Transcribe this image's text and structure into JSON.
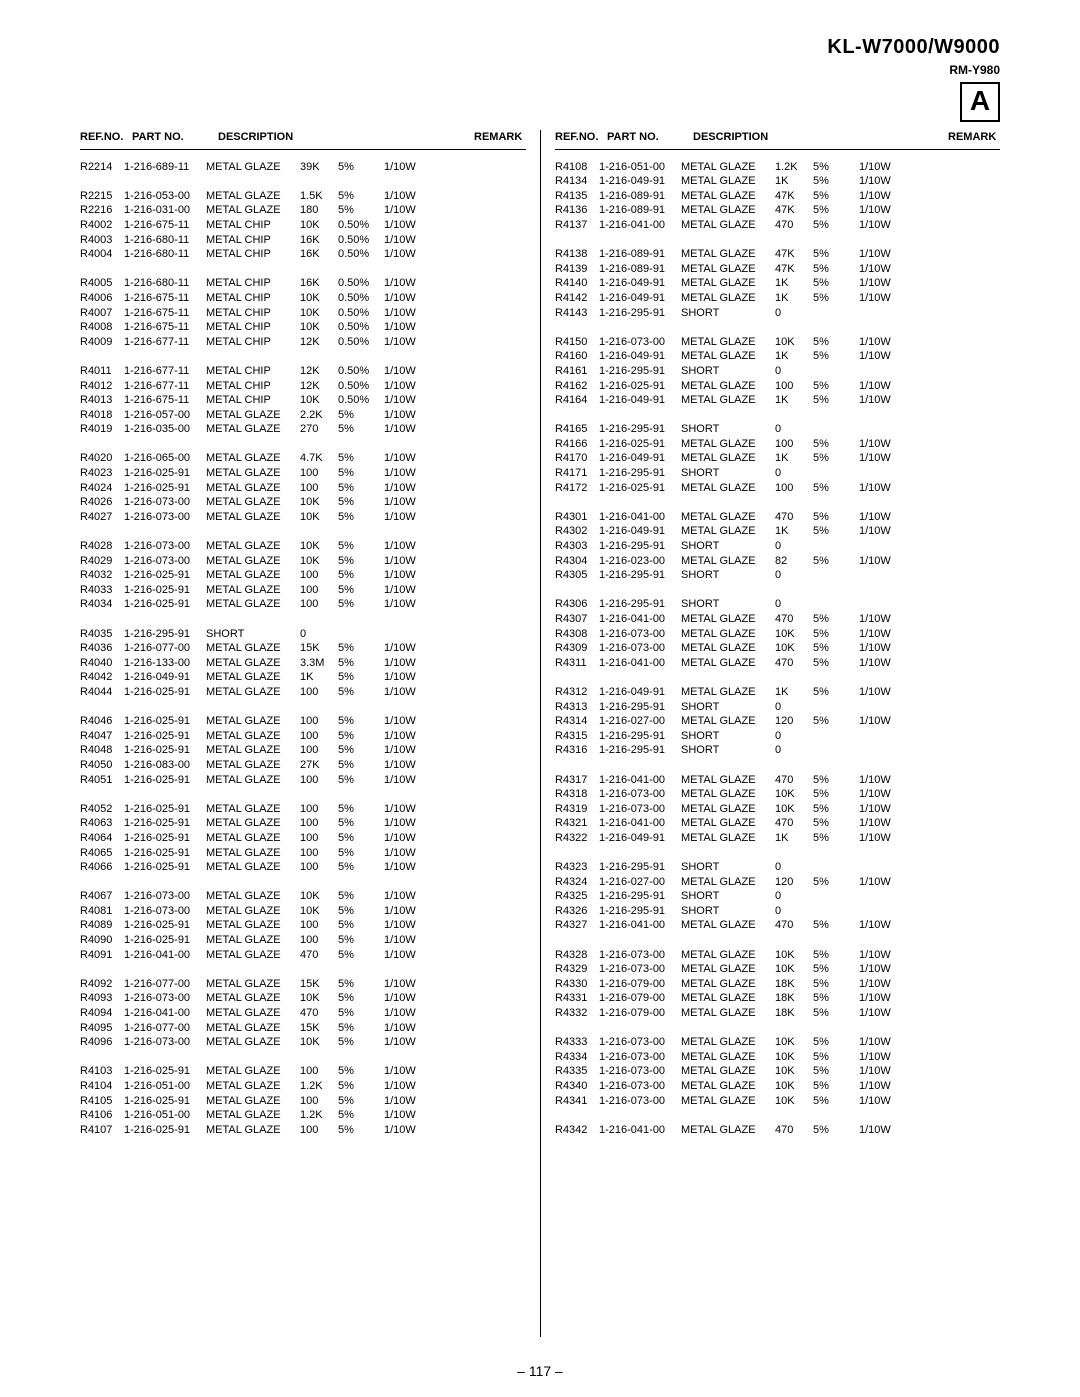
{
  "header": {
    "model": "KL-W7000/W9000",
    "submodel": "RM-Y980",
    "section_letter": "A",
    "page_number": "– 117 –"
  },
  "column_header": {
    "ref": "REF.NO.",
    "part": "PART NO.",
    "desc": "DESCRIPTION",
    "remark": "REMARK"
  },
  "left": [
    {
      "ref": "R2214",
      "part": "1-216-689-11",
      "desc": "METAL GLAZE",
      "val": "39K",
      "tol": "5%",
      "watt": "1/10W"
    },
    null,
    {
      "ref": "R2215",
      "part": "1-216-053-00",
      "desc": "METAL GLAZE",
      "val": "1.5K",
      "tol": "5%",
      "watt": "1/10W"
    },
    {
      "ref": "R2216",
      "part": "1-216-031-00",
      "desc": "METAL GLAZE",
      "val": "180",
      "tol": "5%",
      "watt": "1/10W"
    },
    {
      "ref": "R4002",
      "part": "1-216-675-11",
      "desc": "METAL CHIP",
      "val": "10K",
      "tol": "0.50%",
      "watt": "1/10W"
    },
    {
      "ref": "R4003",
      "part": "1-216-680-11",
      "desc": "METAL CHIP",
      "val": "16K",
      "tol": "0.50%",
      "watt": "1/10W"
    },
    {
      "ref": "R4004",
      "part": "1-216-680-11",
      "desc": "METAL CHIP",
      "val": "16K",
      "tol": "0.50%",
      "watt": "1/10W"
    },
    null,
    {
      "ref": "R4005",
      "part": "1-216-680-11",
      "desc": "METAL CHIP",
      "val": "16K",
      "tol": "0.50%",
      "watt": "1/10W"
    },
    {
      "ref": "R4006",
      "part": "1-216-675-11",
      "desc": "METAL CHIP",
      "val": "10K",
      "tol": "0.50%",
      "watt": "1/10W"
    },
    {
      "ref": "R4007",
      "part": "1-216-675-11",
      "desc": "METAL CHIP",
      "val": "10K",
      "tol": "0.50%",
      "watt": "1/10W"
    },
    {
      "ref": "R4008",
      "part": "1-216-675-11",
      "desc": "METAL CHIP",
      "val": "10K",
      "tol": "0.50%",
      "watt": "1/10W"
    },
    {
      "ref": "R4009",
      "part": "1-216-677-11",
      "desc": "METAL CHIP",
      "val": "12K",
      "tol": "0.50%",
      "watt": "1/10W"
    },
    null,
    {
      "ref": "R4011",
      "part": "1-216-677-11",
      "desc": "METAL CHIP",
      "val": "12K",
      "tol": "0.50%",
      "watt": "1/10W"
    },
    {
      "ref": "R4012",
      "part": "1-216-677-11",
      "desc": "METAL CHIP",
      "val": "12K",
      "tol": "0.50%",
      "watt": "1/10W"
    },
    {
      "ref": "R4013",
      "part": "1-216-675-11",
      "desc": "METAL CHIP",
      "val": "10K",
      "tol": "0.50%",
      "watt": "1/10W"
    },
    {
      "ref": "R4018",
      "part": "1-216-057-00",
      "desc": "METAL GLAZE",
      "val": "2.2K",
      "tol": "5%",
      "watt": "1/10W"
    },
    {
      "ref": "R4019",
      "part": "1-216-035-00",
      "desc": "METAL GLAZE",
      "val": "270",
      "tol": "5%",
      "watt": "1/10W"
    },
    null,
    {
      "ref": "R4020",
      "part": "1-216-065-00",
      "desc": "METAL GLAZE",
      "val": "4.7K",
      "tol": "5%",
      "watt": "1/10W"
    },
    {
      "ref": "R4023",
      "part": "1-216-025-91",
      "desc": "METAL GLAZE",
      "val": "100",
      "tol": "5%",
      "watt": "1/10W"
    },
    {
      "ref": "R4024",
      "part": "1-216-025-91",
      "desc": "METAL GLAZE",
      "val": "100",
      "tol": "5%",
      "watt": "1/10W"
    },
    {
      "ref": "R4026",
      "part": "1-216-073-00",
      "desc": "METAL GLAZE",
      "val": "10K",
      "tol": "5%",
      "watt": "1/10W"
    },
    {
      "ref": "R4027",
      "part": "1-216-073-00",
      "desc": "METAL GLAZE",
      "val": "10K",
      "tol": "5%",
      "watt": "1/10W"
    },
    null,
    {
      "ref": "R4028",
      "part": "1-216-073-00",
      "desc": "METAL GLAZE",
      "val": "10K",
      "tol": "5%",
      "watt": "1/10W"
    },
    {
      "ref": "R4029",
      "part": "1-216-073-00",
      "desc": "METAL GLAZE",
      "val": "10K",
      "tol": "5%",
      "watt": "1/10W"
    },
    {
      "ref": "R4032",
      "part": "1-216-025-91",
      "desc": "METAL GLAZE",
      "val": "100",
      "tol": "5%",
      "watt": "1/10W"
    },
    {
      "ref": "R4033",
      "part": "1-216-025-91",
      "desc": "METAL GLAZE",
      "val": "100",
      "tol": "5%",
      "watt": "1/10W"
    },
    {
      "ref": "R4034",
      "part": "1-216-025-91",
      "desc": "METAL GLAZE",
      "val": "100",
      "tol": "5%",
      "watt": "1/10W"
    },
    null,
    {
      "ref": "R4035",
      "part": "1-216-295-91",
      "desc": "SHORT",
      "val": "0",
      "tol": "",
      "watt": ""
    },
    {
      "ref": "R4036",
      "part": "1-216-077-00",
      "desc": "METAL GLAZE",
      "val": "15K",
      "tol": "5%",
      "watt": "1/10W"
    },
    {
      "ref": "R4040",
      "part": "1-216-133-00",
      "desc": "METAL GLAZE",
      "val": "3.3M",
      "tol": "5%",
      "watt": "1/10W"
    },
    {
      "ref": "R4042",
      "part": "1-216-049-91",
      "desc": "METAL GLAZE",
      "val": "1K",
      "tol": "5%",
      "watt": "1/10W"
    },
    {
      "ref": "R4044",
      "part": "1-216-025-91",
      "desc": "METAL GLAZE",
      "val": "100",
      "tol": "5%",
      "watt": "1/10W"
    },
    null,
    {
      "ref": "R4046",
      "part": "1-216-025-91",
      "desc": "METAL GLAZE",
      "val": "100",
      "tol": "5%",
      "watt": "1/10W"
    },
    {
      "ref": "R4047",
      "part": "1-216-025-91",
      "desc": "METAL GLAZE",
      "val": "100",
      "tol": "5%",
      "watt": "1/10W"
    },
    {
      "ref": "R4048",
      "part": "1-216-025-91",
      "desc": "METAL GLAZE",
      "val": "100",
      "tol": "5%",
      "watt": "1/10W"
    },
    {
      "ref": "R4050",
      "part": "1-216-083-00",
      "desc": "METAL GLAZE",
      "val": "27K",
      "tol": "5%",
      "watt": "1/10W"
    },
    {
      "ref": "R4051",
      "part": "1-216-025-91",
      "desc": "METAL GLAZE",
      "val": "100",
      "tol": "5%",
      "watt": "1/10W"
    },
    null,
    {
      "ref": "R4052",
      "part": "1-216-025-91",
      "desc": "METAL GLAZE",
      "val": "100",
      "tol": "5%",
      "watt": "1/10W"
    },
    {
      "ref": "R4063",
      "part": "1-216-025-91",
      "desc": "METAL GLAZE",
      "val": "100",
      "tol": "5%",
      "watt": "1/10W"
    },
    {
      "ref": "R4064",
      "part": "1-216-025-91",
      "desc": "METAL GLAZE",
      "val": "100",
      "tol": "5%",
      "watt": "1/10W"
    },
    {
      "ref": "R4065",
      "part": "1-216-025-91",
      "desc": "METAL GLAZE",
      "val": "100",
      "tol": "5%",
      "watt": "1/10W"
    },
    {
      "ref": "R4066",
      "part": "1-216-025-91",
      "desc": "METAL GLAZE",
      "val": "100",
      "tol": "5%",
      "watt": "1/10W"
    },
    null,
    {
      "ref": "R4067",
      "part": "1-216-073-00",
      "desc": "METAL GLAZE",
      "val": "10K",
      "tol": "5%",
      "watt": "1/10W"
    },
    {
      "ref": "R4081",
      "part": "1-216-073-00",
      "desc": "METAL GLAZE",
      "val": "10K",
      "tol": "5%",
      "watt": "1/10W"
    },
    {
      "ref": "R4089",
      "part": "1-216-025-91",
      "desc": "METAL GLAZE",
      "val": "100",
      "tol": "5%",
      "watt": "1/10W"
    },
    {
      "ref": "R4090",
      "part": "1-216-025-91",
      "desc": "METAL GLAZE",
      "val": "100",
      "tol": "5%",
      "watt": "1/10W"
    },
    {
      "ref": "R4091",
      "part": "1-216-041-00",
      "desc": "METAL GLAZE",
      "val": "470",
      "tol": "5%",
      "watt": "1/10W"
    },
    null,
    {
      "ref": "R4092",
      "part": "1-216-077-00",
      "desc": "METAL GLAZE",
      "val": "15K",
      "tol": "5%",
      "watt": "1/10W"
    },
    {
      "ref": "R4093",
      "part": "1-216-073-00",
      "desc": "METAL GLAZE",
      "val": "10K",
      "tol": "5%",
      "watt": "1/10W"
    },
    {
      "ref": "R4094",
      "part": "1-216-041-00",
      "desc": "METAL GLAZE",
      "val": "470",
      "tol": "5%",
      "watt": "1/10W"
    },
    {
      "ref": "R4095",
      "part": "1-216-077-00",
      "desc": "METAL GLAZE",
      "val": "15K",
      "tol": "5%",
      "watt": "1/10W"
    },
    {
      "ref": "R4096",
      "part": "1-216-073-00",
      "desc": "METAL GLAZE",
      "val": "10K",
      "tol": "5%",
      "watt": "1/10W"
    },
    null,
    {
      "ref": "R4103",
      "part": "1-216-025-91",
      "desc": "METAL GLAZE",
      "val": "100",
      "tol": "5%",
      "watt": "1/10W"
    },
    {
      "ref": "R4104",
      "part": "1-216-051-00",
      "desc": "METAL GLAZE",
      "val": "1.2K",
      "tol": "5%",
      "watt": "1/10W"
    },
    {
      "ref": "R4105",
      "part": "1-216-025-91",
      "desc": "METAL GLAZE",
      "val": "100",
      "tol": "5%",
      "watt": "1/10W"
    },
    {
      "ref": "R4106",
      "part": "1-216-051-00",
      "desc": "METAL GLAZE",
      "val": "1.2K",
      "tol": "5%",
      "watt": "1/10W"
    },
    {
      "ref": "R4107",
      "part": "1-216-025-91",
      "desc": "METAL GLAZE",
      "val": "100",
      "tol": "5%",
      "watt": "1/10W"
    }
  ],
  "right": [
    {
      "ref": "R4108",
      "part": "1-216-051-00",
      "desc": "METAL GLAZE",
      "val": "1.2K",
      "tol": "5%",
      "watt": "1/10W"
    },
    {
      "ref": "R4134",
      "part": "1-216-049-91",
      "desc": "METAL GLAZE",
      "val": "1K",
      "tol": "5%",
      "watt": "1/10W"
    },
    {
      "ref": "R4135",
      "part": "1-216-089-91",
      "desc": "METAL GLAZE",
      "val": "47K",
      "tol": "5%",
      "watt": "1/10W"
    },
    {
      "ref": "R4136",
      "part": "1-216-089-91",
      "desc": "METAL GLAZE",
      "val": "47K",
      "tol": "5%",
      "watt": "1/10W"
    },
    {
      "ref": "R4137",
      "part": "1-216-041-00",
      "desc": "METAL GLAZE",
      "val": "470",
      "tol": "5%",
      "watt": "1/10W"
    },
    null,
    {
      "ref": "R4138",
      "part": "1-216-089-91",
      "desc": "METAL GLAZE",
      "val": "47K",
      "tol": "5%",
      "watt": "1/10W"
    },
    {
      "ref": "R4139",
      "part": "1-216-089-91",
      "desc": "METAL GLAZE",
      "val": "47K",
      "tol": "5%",
      "watt": "1/10W"
    },
    {
      "ref": "R4140",
      "part": "1-216-049-91",
      "desc": "METAL GLAZE",
      "val": "1K",
      "tol": "5%",
      "watt": "1/10W"
    },
    {
      "ref": "R4142",
      "part": "1-216-049-91",
      "desc": "METAL GLAZE",
      "val": "1K",
      "tol": "5%",
      "watt": "1/10W"
    },
    {
      "ref": "R4143",
      "part": "1-216-295-91",
      "desc": "SHORT",
      "val": "0",
      "tol": "",
      "watt": ""
    },
    null,
    {
      "ref": "R4150",
      "part": "1-216-073-00",
      "desc": "METAL GLAZE",
      "val": "10K",
      "tol": "5%",
      "watt": "1/10W"
    },
    {
      "ref": "R4160",
      "part": "1-216-049-91",
      "desc": "METAL GLAZE",
      "val": "1K",
      "tol": "5%",
      "watt": "1/10W"
    },
    {
      "ref": "R4161",
      "part": "1-216-295-91",
      "desc": "SHORT",
      "val": "0",
      "tol": "",
      "watt": ""
    },
    {
      "ref": "R4162",
      "part": "1-216-025-91",
      "desc": "METAL GLAZE",
      "val": "100",
      "tol": "5%",
      "watt": "1/10W"
    },
    {
      "ref": "R4164",
      "part": "1-216-049-91",
      "desc": "METAL GLAZE",
      "val": "1K",
      "tol": "5%",
      "watt": "1/10W"
    },
    null,
    {
      "ref": "R4165",
      "part": "1-216-295-91",
      "desc": "SHORT",
      "val": "0",
      "tol": "",
      "watt": ""
    },
    {
      "ref": "R4166",
      "part": "1-216-025-91",
      "desc": "METAL GLAZE",
      "val": "100",
      "tol": "5%",
      "watt": "1/10W"
    },
    {
      "ref": "R4170",
      "part": "1-216-049-91",
      "desc": "METAL GLAZE",
      "val": "1K",
      "tol": "5%",
      "watt": "1/10W"
    },
    {
      "ref": "R4171",
      "part": "1-216-295-91",
      "desc": "SHORT",
      "val": "0",
      "tol": "",
      "watt": ""
    },
    {
      "ref": "R4172",
      "part": "1-216-025-91",
      "desc": "METAL GLAZE",
      "val": "100",
      "tol": "5%",
      "watt": "1/10W"
    },
    null,
    {
      "ref": "R4301",
      "part": "1-216-041-00",
      "desc": "METAL GLAZE",
      "val": "470",
      "tol": "5%",
      "watt": "1/10W"
    },
    {
      "ref": "R4302",
      "part": "1-216-049-91",
      "desc": "METAL GLAZE",
      "val": "1K",
      "tol": "5%",
      "watt": "1/10W"
    },
    {
      "ref": "R4303",
      "part": "1-216-295-91",
      "desc": "SHORT",
      "val": "0",
      "tol": "",
      "watt": ""
    },
    {
      "ref": "R4304",
      "part": "1-216-023-00",
      "desc": "METAL GLAZE",
      "val": "82",
      "tol": "5%",
      "watt": "1/10W"
    },
    {
      "ref": "R4305",
      "part": "1-216-295-91",
      "desc": "SHORT",
      "val": "0",
      "tol": "",
      "watt": ""
    },
    null,
    {
      "ref": "R4306",
      "part": "1-216-295-91",
      "desc": "SHORT",
      "val": "0",
      "tol": "",
      "watt": ""
    },
    {
      "ref": "R4307",
      "part": "1-216-041-00",
      "desc": "METAL GLAZE",
      "val": "470",
      "tol": "5%",
      "watt": "1/10W"
    },
    {
      "ref": "R4308",
      "part": "1-216-073-00",
      "desc": "METAL GLAZE",
      "val": "10K",
      "tol": "5%",
      "watt": "1/10W"
    },
    {
      "ref": "R4309",
      "part": "1-216-073-00",
      "desc": "METAL GLAZE",
      "val": "10K",
      "tol": "5%",
      "watt": "1/10W"
    },
    {
      "ref": "R4311",
      "part": "1-216-041-00",
      "desc": "METAL GLAZE",
      "val": "470",
      "tol": "5%",
      "watt": "1/10W"
    },
    null,
    {
      "ref": "R4312",
      "part": "1-216-049-91",
      "desc": "METAL GLAZE",
      "val": "1K",
      "tol": "5%",
      "watt": "1/10W"
    },
    {
      "ref": "R4313",
      "part": "1-216-295-91",
      "desc": "SHORT",
      "val": "0",
      "tol": "",
      "watt": ""
    },
    {
      "ref": "R4314",
      "part": "1-216-027-00",
      "desc": "METAL GLAZE",
      "val": "120",
      "tol": "5%",
      "watt": "1/10W"
    },
    {
      "ref": "R4315",
      "part": "1-216-295-91",
      "desc": "SHORT",
      "val": "0",
      "tol": "",
      "watt": ""
    },
    {
      "ref": "R4316",
      "part": "1-216-295-91",
      "desc": "SHORT",
      "val": "0",
      "tol": "",
      "watt": ""
    },
    null,
    {
      "ref": "R4317",
      "part": "1-216-041-00",
      "desc": "METAL GLAZE",
      "val": "470",
      "tol": "5%",
      "watt": "1/10W"
    },
    {
      "ref": "R4318",
      "part": "1-216-073-00",
      "desc": "METAL GLAZE",
      "val": "10K",
      "tol": "5%",
      "watt": "1/10W"
    },
    {
      "ref": "R4319",
      "part": "1-216-073-00",
      "desc": "METAL GLAZE",
      "val": "10K",
      "tol": "5%",
      "watt": "1/10W"
    },
    {
      "ref": "R4321",
      "part": "1-216-041-00",
      "desc": "METAL GLAZE",
      "val": "470",
      "tol": "5%",
      "watt": "1/10W"
    },
    {
      "ref": "R4322",
      "part": "1-216-049-91",
      "desc": "METAL GLAZE",
      "val": "1K",
      "tol": "5%",
      "watt": "1/10W"
    },
    null,
    {
      "ref": "R4323",
      "part": "1-216-295-91",
      "desc": "SHORT",
      "val": "0",
      "tol": "",
      "watt": ""
    },
    {
      "ref": "R4324",
      "part": "1-216-027-00",
      "desc": "METAL GLAZE",
      "val": "120",
      "tol": "5%",
      "watt": "1/10W"
    },
    {
      "ref": "R4325",
      "part": "1-216-295-91",
      "desc": "SHORT",
      "val": "0",
      "tol": "",
      "watt": ""
    },
    {
      "ref": "R4326",
      "part": "1-216-295-91",
      "desc": "SHORT",
      "val": "0",
      "tol": "",
      "watt": ""
    },
    {
      "ref": "R4327",
      "part": "1-216-041-00",
      "desc": "METAL GLAZE",
      "val": "470",
      "tol": "5%",
      "watt": "1/10W"
    },
    null,
    {
      "ref": "R4328",
      "part": "1-216-073-00",
      "desc": "METAL GLAZE",
      "val": "10K",
      "tol": "5%",
      "watt": "1/10W"
    },
    {
      "ref": "R4329",
      "part": "1-216-073-00",
      "desc": "METAL GLAZE",
      "val": "10K",
      "tol": "5%",
      "watt": "1/10W"
    },
    {
      "ref": "R4330",
      "part": "1-216-079-00",
      "desc": "METAL GLAZE",
      "val": "18K",
      "tol": "5%",
      "watt": "1/10W"
    },
    {
      "ref": "R4331",
      "part": "1-216-079-00",
      "desc": "METAL GLAZE",
      "val": "18K",
      "tol": "5%",
      "watt": "1/10W"
    },
    {
      "ref": "R4332",
      "part": "1-216-079-00",
      "desc": "METAL GLAZE",
      "val": "18K",
      "tol": "5%",
      "watt": "1/10W"
    },
    null,
    {
      "ref": "R4333",
      "part": "1-216-073-00",
      "desc": "METAL GLAZE",
      "val": "10K",
      "tol": "5%",
      "watt": "1/10W"
    },
    {
      "ref": "R4334",
      "part": "1-216-073-00",
      "desc": "METAL GLAZE",
      "val": "10K",
      "tol": "5%",
      "watt": "1/10W"
    },
    {
      "ref": "R4335",
      "part": "1-216-073-00",
      "desc": "METAL GLAZE",
      "val": "10K",
      "tol": "5%",
      "watt": "1/10W"
    },
    {
      "ref": "R4340",
      "part": "1-216-073-00",
      "desc": "METAL GLAZE",
      "val": "10K",
      "tol": "5%",
      "watt": "1/10W"
    },
    {
      "ref": "R4341",
      "part": "1-216-073-00",
      "desc": "METAL GLAZE",
      "val": "10K",
      "tol": "5%",
      "watt": "1/10W"
    },
    null,
    {
      "ref": "R4342",
      "part": "1-216-041-00",
      "desc": "METAL GLAZE",
      "val": "470",
      "tol": "5%",
      "watt": "1/10W"
    }
  ]
}
